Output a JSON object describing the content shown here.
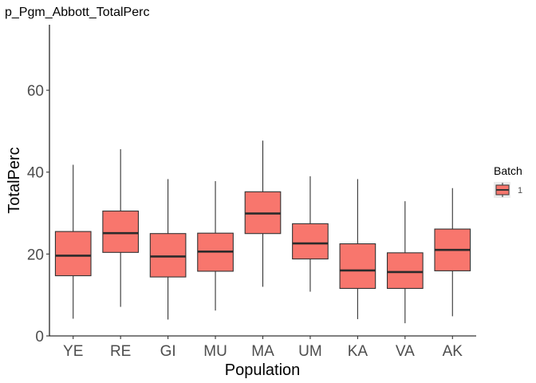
{
  "chart_data": {
    "type": "box",
    "title": "p_Pgm_Abbott_TotalPerc",
    "xlabel": "Population",
    "ylabel": "TotalPerc",
    "ylim": [
      0,
      76
    ],
    "yticks": [
      0,
      20,
      40,
      60
    ],
    "grid": false,
    "categories": [
      "YE",
      "RE",
      "GI",
      "MU",
      "MA",
      "UM",
      "KA",
      "VA",
      "AK"
    ],
    "series": [
      {
        "name": "1",
        "color": "#f8766d",
        "boxes": [
          {
            "min": 4.2,
            "q1": 14.7,
            "median": 19.6,
            "q3": 25.5,
            "max": 41.8
          },
          {
            "min": 7.1,
            "q1": 20.4,
            "median": 25.1,
            "q3": 30.5,
            "max": 45.6
          },
          {
            "min": 4.0,
            "q1": 14.4,
            "median": 19.4,
            "q3": 25.0,
            "max": 38.3
          },
          {
            "min": 6.2,
            "q1": 15.8,
            "median": 20.6,
            "q3": 25.1,
            "max": 37.8
          },
          {
            "min": 12.0,
            "q1": 25.0,
            "median": 29.9,
            "q3": 35.2,
            "max": 47.7
          },
          {
            "min": 10.8,
            "q1": 18.8,
            "median": 22.6,
            "q3": 27.4,
            "max": 39.0
          },
          {
            "min": 4.1,
            "q1": 11.6,
            "median": 16.0,
            "q3": 22.5,
            "max": 38.3
          },
          {
            "min": 3.1,
            "q1": 11.6,
            "median": 15.6,
            "q3": 20.3,
            "max": 32.9
          },
          {
            "min": 4.8,
            "q1": 15.9,
            "median": 21.0,
            "q3": 26.1,
            "max": 36.1
          }
        ]
      }
    ],
    "legend": {
      "title": "Batch",
      "position": "right",
      "entries": [
        "1"
      ]
    }
  }
}
